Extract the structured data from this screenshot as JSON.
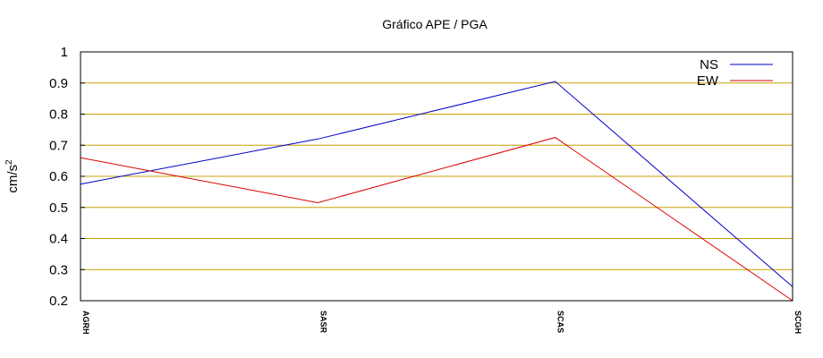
{
  "chart_data": {
    "type": "line",
    "title": "Gráfico  APE / PGA",
    "xlabel": "",
    "ylabel": "cm/s",
    "ylabel_superscript": "2",
    "categories": [
      "AGRH",
      "SASR",
      "SCAS",
      "SCGH"
    ],
    "ylim": [
      0.2,
      1
    ],
    "yticks": [
      "1",
      "0.9",
      "0.8",
      "0.7",
      "0.6",
      "0.5",
      "0.4",
      "0.3",
      "0.2"
    ],
    "grid": true,
    "grid_color": "#c8a000",
    "legend_position": "top-right",
    "series": [
      {
        "name": "NS",
        "color": "#0000cc",
        "values": [
          0.575,
          0.72,
          0.905,
          0.245
        ]
      },
      {
        "name": "EW",
        "color": "#dd0000",
        "values": [
          0.66,
          0.515,
          0.725,
          0.2
        ]
      }
    ]
  }
}
